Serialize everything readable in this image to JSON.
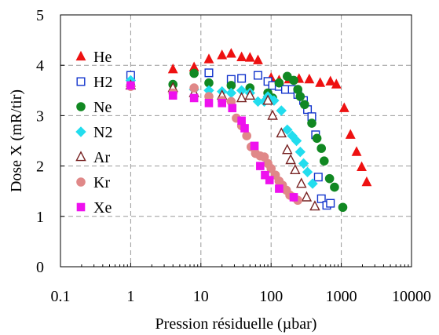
{
  "chart_data": {
    "type": "scatter",
    "title": "",
    "xlabel": "Pression résiduelle  (µbar)",
    "ylabel": "Dose X (mR/tir)",
    "x_scale": "log",
    "xlim": [
      0.1,
      10000
    ],
    "ylim": [
      0,
      5
    ],
    "x_ticks": [
      0.1,
      1,
      10,
      100,
      1000,
      10000
    ],
    "x_tick_labels": [
      "0.1",
      "1",
      "10",
      "100",
      "1000",
      "10000"
    ],
    "y_ticks": [
      0,
      1,
      2,
      3,
      4,
      5
    ],
    "y_tick_labels": [
      "0",
      "1",
      "2",
      "3",
      "4",
      "5"
    ],
    "grid": "dashed",
    "legend_position": "left",
    "series": [
      {
        "name": "He",
        "marker": "triangle",
        "color": "#ee1111",
        "filled": true,
        "points": [
          [
            1,
            3.65
          ],
          [
            4,
            3.92
          ],
          [
            8,
            3.96
          ],
          [
            13,
            4.12
          ],
          [
            20,
            4.2
          ],
          [
            27,
            4.23
          ],
          [
            38,
            4.16
          ],
          [
            50,
            4.15
          ],
          [
            65,
            4.1
          ],
          [
            100,
            3.75
          ],
          [
            130,
            3.7
          ],
          [
            180,
            3.72
          ],
          [
            250,
            3.73
          ],
          [
            350,
            3.72
          ],
          [
            500,
            3.65
          ],
          [
            700,
            3.68
          ],
          [
            850,
            3.62
          ],
          [
            1100,
            3.15
          ],
          [
            1350,
            2.62
          ],
          [
            1650,
            2.28
          ],
          [
            1950,
            1.98
          ],
          [
            2300,
            1.68
          ]
        ]
      },
      {
        "name": "H2",
        "marker": "square",
        "color": "#1133cc",
        "filled": false,
        "points": [
          [
            1,
            3.8
          ],
          [
            13,
            3.85
          ],
          [
            27,
            3.72
          ],
          [
            38,
            3.74
          ],
          [
            65,
            3.8
          ],
          [
            90,
            3.68
          ],
          [
            105,
            3.6
          ],
          [
            130,
            3.58
          ],
          [
            160,
            3.52
          ],
          [
            200,
            3.52
          ],
          [
            240,
            3.42
          ],
          [
            290,
            3.3
          ],
          [
            330,
            3.12
          ],
          [
            380,
            2.98
          ],
          [
            430,
            2.62
          ],
          [
            470,
            1.78
          ],
          [
            520,
            1.35
          ],
          [
            620,
            1.22
          ],
          [
            700,
            1.26
          ]
        ]
      },
      {
        "name": "Ne",
        "marker": "circle",
        "color": "#118822",
        "filled": true,
        "points": [
          [
            1,
            3.6
          ],
          [
            4,
            3.62
          ],
          [
            8,
            3.84
          ],
          [
            13,
            3.65
          ],
          [
            27,
            3.6
          ],
          [
            50,
            3.55
          ],
          [
            90,
            3.45
          ],
          [
            105,
            3.35
          ],
          [
            130,
            3.65
          ],
          [
            170,
            3.78
          ],
          [
            210,
            3.7
          ],
          [
            240,
            3.52
          ],
          [
            260,
            3.38
          ],
          [
            300,
            3.22
          ],
          [
            380,
            2.85
          ],
          [
            450,
            2.55
          ],
          [
            520,
            2.35
          ],
          [
            570,
            2.1
          ],
          [
            680,
            1.75
          ],
          [
            800,
            1.58
          ],
          [
            1050,
            1.18
          ]
        ]
      },
      {
        "name": "N2",
        "marker": "diamond",
        "color": "#22ddee",
        "filled": true,
        "points": [
          [
            1,
            3.7
          ],
          [
            8,
            3.52
          ],
          [
            13,
            3.5
          ],
          [
            20,
            3.48
          ],
          [
            27,
            3.45
          ],
          [
            38,
            3.5
          ],
          [
            50,
            3.45
          ],
          [
            65,
            3.28
          ],
          [
            80,
            3.28
          ],
          [
            90,
            3.38
          ],
          [
            110,
            3.3
          ],
          [
            140,
            3.1
          ],
          [
            170,
            2.72
          ],
          [
            200,
            2.6
          ],
          [
            230,
            2.5
          ],
          [
            260,
            2.28
          ],
          [
            290,
            2.05
          ],
          [
            330,
            1.88
          ],
          [
            390,
            1.65
          ]
        ]
      },
      {
        "name": "Ar",
        "marker": "triangle",
        "color": "#772222",
        "filled": false,
        "points": [
          [
            1,
            3.6
          ],
          [
            4,
            3.55
          ],
          [
            8,
            3.45
          ],
          [
            20,
            3.4
          ],
          [
            38,
            3.35
          ],
          [
            50,
            3.4
          ],
          [
            90,
            3.3
          ],
          [
            105,
            3.0
          ],
          [
            140,
            2.65
          ],
          [
            170,
            2.32
          ],
          [
            190,
            2.12
          ],
          [
            220,
            1.92
          ],
          [
            270,
            1.65
          ],
          [
            320,
            1.38
          ],
          [
            420,
            1.2
          ]
        ]
      },
      {
        "name": "Kr",
        "marker": "circle",
        "color": "#e08888",
        "filled": true,
        "points": [
          [
            1,
            3.58
          ],
          [
            4,
            3.45
          ],
          [
            8,
            3.55
          ],
          [
            13,
            3.38
          ],
          [
            20,
            3.3
          ],
          [
            27,
            3.28
          ],
          [
            32,
            2.95
          ],
          [
            38,
            2.8
          ],
          [
            45,
            2.6
          ],
          [
            52,
            2.38
          ],
          [
            60,
            2.25
          ],
          [
            70,
            2.2
          ],
          [
            80,
            2.18
          ],
          [
            90,
            2.05
          ],
          [
            100,
            1.95
          ],
          [
            115,
            1.82
          ],
          [
            130,
            1.7
          ],
          [
            145,
            1.62
          ],
          [
            165,
            1.52
          ],
          [
            185,
            1.42
          ],
          [
            210,
            1.38
          ],
          [
            240,
            1.32
          ]
        ]
      },
      {
        "name": "Xe",
        "marker": "square",
        "color": "#ee11ee",
        "filled": true,
        "points": [
          [
            1,
            3.6
          ],
          [
            4,
            3.4
          ],
          [
            8,
            3.35
          ],
          [
            13,
            3.25
          ],
          [
            20,
            3.25
          ],
          [
            28,
            3.15
          ],
          [
            38,
            2.9
          ],
          [
            42,
            2.75
          ],
          [
            58,
            2.4
          ],
          [
            70,
            2.0
          ],
          [
            82,
            1.82
          ],
          [
            95,
            1.72
          ],
          [
            130,
            1.55
          ],
          [
            210,
            1.38
          ]
        ]
      }
    ]
  }
}
